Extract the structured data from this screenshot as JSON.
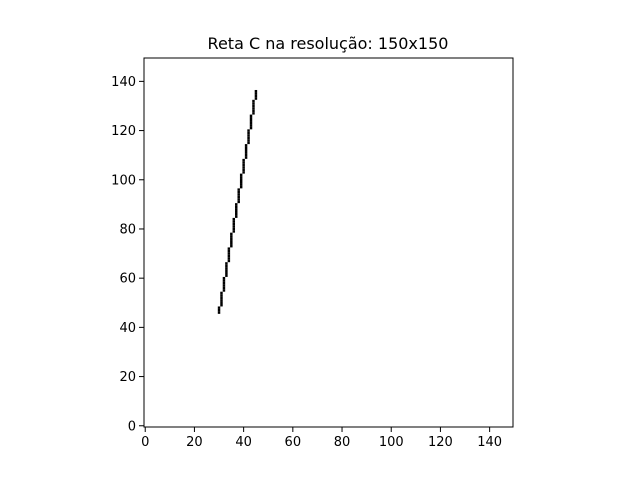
{
  "chart_data": {
    "type": "raster-line",
    "title": "Reta C na resolução: 150x150",
    "xlabel": "",
    "ylabel": "",
    "resolution": [
      150,
      150
    ],
    "xlim": [
      0,
      150
    ],
    "ylim": [
      0,
      150
    ],
    "x_ticks": [
      0,
      20,
      40,
      60,
      80,
      100,
      120,
      140
    ],
    "y_ticks": [
      0,
      20,
      40,
      60,
      80,
      100,
      120,
      140
    ],
    "grid": false,
    "line": {
      "name": "",
      "start": [
        30,
        46
      ],
      "end": [
        45,
        136
      ]
    },
    "colors": {
      "pixel": "#000000",
      "background": "#ffffff",
      "axes": "#000000"
    }
  }
}
